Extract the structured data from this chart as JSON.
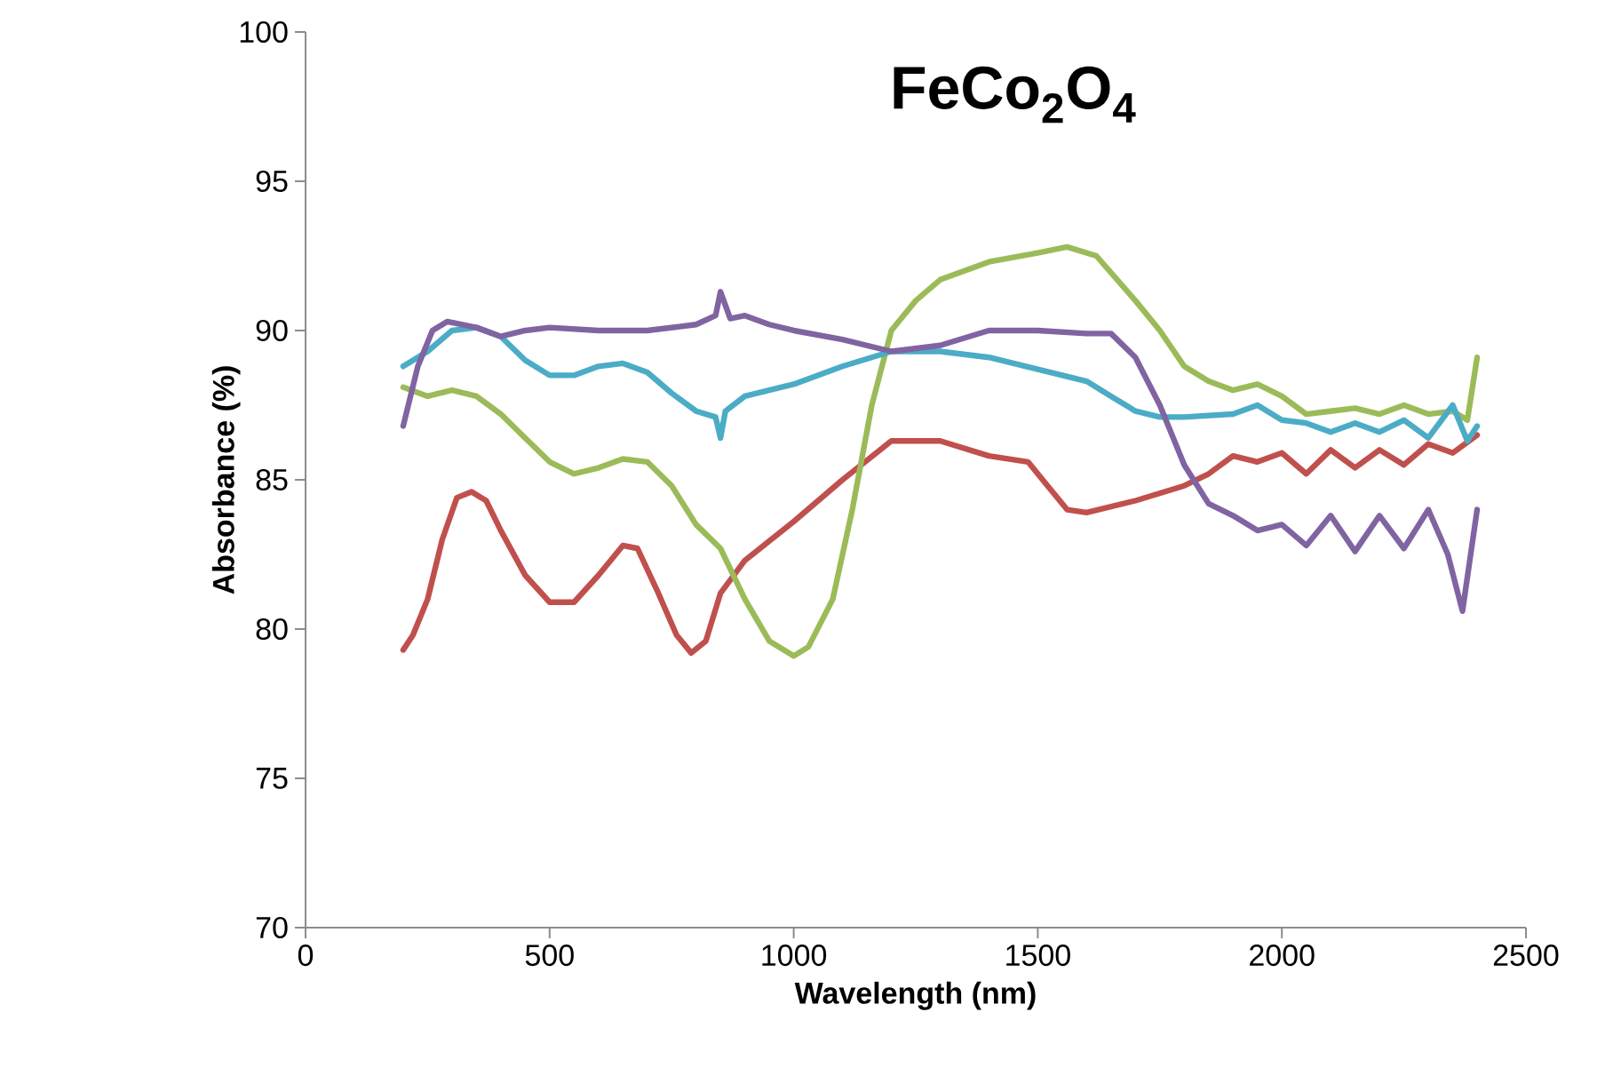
{
  "chart_data": {
    "type": "line",
    "title": "**FeCo$_{2}$O$_{4}$**",
    "xlabel": "Wavelength (nm)",
    "ylabel": "Absorbance (%)",
    "xlim": [
      0,
      2500
    ],
    "ylim": [
      70,
      100
    ],
    "xticks": [
      0,
      500,
      1000,
      1500,
      2000,
      2500
    ],
    "yticks": [
      70,
      75,
      80,
      85,
      90,
      95,
      100
    ],
    "grid": false,
    "marker": "none",
    "line_style": "solid",
    "series": [
      {
        "color": "#c0504d",
        "x": [
          200,
          220,
          250,
          280,
          310,
          340,
          370,
          400,
          450,
          500,
          550,
          600,
          650,
          680,
          720,
          760,
          790,
          820,
          850,
          900,
          1000,
          1100,
          1200,
          1300,
          1400,
          1480,
          1520,
          1560,
          1600,
          1700,
          1800,
          1850,
          1900,
          1950,
          2000,
          2050,
          2100,
          2150,
          2200,
          2250,
          2300,
          2350,
          2400
        ],
        "values": [
          79.3,
          79.8,
          81,
          83,
          84.4,
          84.6,
          84.3,
          83.3,
          81.8,
          80.9,
          80.9,
          81.8,
          82.8,
          82.7,
          81.3,
          79.8,
          79.2,
          79.6,
          81.2,
          82.3,
          83.6,
          85,
          86.3,
          86.3,
          85.8,
          85.6,
          84.8,
          84,
          83.9,
          84.3,
          84.8,
          85.2,
          85.8,
          85.6,
          85.9,
          85.2,
          86,
          85.4,
          86,
          85.5,
          86.2,
          85.9,
          86.5
        ]
      },
      {
        "color": "#9bbb59",
        "x": [
          200,
          250,
          300,
          350,
          400,
          450,
          500,
          550,
          600,
          650,
          700,
          750,
          800,
          850,
          900,
          950,
          1000,
          1030,
          1080,
          1120,
          1160,
          1200,
          1250,
          1300,
          1400,
          1500,
          1560,
          1620,
          1700,
          1750,
          1800,
          1850,
          1900,
          1950,
          2000,
          2050,
          2100,
          2150,
          2200,
          2250,
          2300,
          2350,
          2380,
          2400
        ],
        "values": [
          88.1,
          87.8,
          88,
          87.8,
          87.2,
          86.4,
          85.6,
          85.2,
          85.4,
          85.7,
          85.6,
          84.8,
          83.5,
          82.7,
          81,
          79.6,
          79.1,
          79.4,
          81,
          84,
          87.5,
          90,
          91,
          91.7,
          92.3,
          92.6,
          92.8,
          92.5,
          91,
          90,
          88.8,
          88.3,
          88,
          88.2,
          87.8,
          87.2,
          87.3,
          87.4,
          87.2,
          87.5,
          87.2,
          87.3,
          87,
          89.1
        ]
      },
      {
        "color": "#4bacc6",
        "x": [
          200,
          250,
          300,
          350,
          400,
          450,
          500,
          550,
          600,
          650,
          700,
          750,
          800,
          840,
          850,
          860,
          900,
          1000,
          1100,
          1200,
          1300,
          1400,
          1500,
          1600,
          1650,
          1700,
          1750,
          1800,
          1900,
          1950,
          2000,
          2050,
          2100,
          2150,
          2200,
          2250,
          2300,
          2350,
          2380,
          2400
        ],
        "values": [
          88.8,
          89.3,
          90,
          90.1,
          89.8,
          89,
          88.5,
          88.5,
          88.8,
          88.9,
          88.6,
          87.9,
          87.3,
          87.1,
          86.4,
          87.3,
          87.8,
          88.2,
          88.8,
          89.3,
          89.3,
          89.1,
          88.7,
          88.3,
          87.8,
          87.3,
          87.1,
          87.1,
          87.2,
          87.5,
          87,
          86.9,
          86.6,
          86.9,
          86.6,
          87,
          86.4,
          87.5,
          86.3,
          86.8
        ]
      },
      {
        "color": "#8064a2",
        "x": [
          200,
          230,
          260,
          290,
          350,
          400,
          450,
          500,
          600,
          700,
          800,
          840,
          850,
          870,
          900,
          950,
          1000,
          1100,
          1200,
          1300,
          1400,
          1500,
          1600,
          1650,
          1700,
          1750,
          1800,
          1850,
          1900,
          1950,
          2000,
          2050,
          2100,
          2150,
          2200,
          2250,
          2300,
          2340,
          2370,
          2400
        ],
        "values": [
          86.8,
          88.8,
          90,
          90.3,
          90.1,
          89.8,
          90,
          90.1,
          90,
          90,
          90.2,
          90.5,
          91.3,
          90.4,
          90.5,
          90.2,
          90,
          89.7,
          89.3,
          89.5,
          90,
          90,
          89.9,
          89.9,
          89.1,
          87.5,
          85.5,
          84.2,
          83.8,
          83.3,
          83.5,
          82.8,
          83.8,
          82.6,
          83.8,
          82.7,
          84,
          82.5,
          80.6,
          84
        ]
      }
    ]
  }
}
